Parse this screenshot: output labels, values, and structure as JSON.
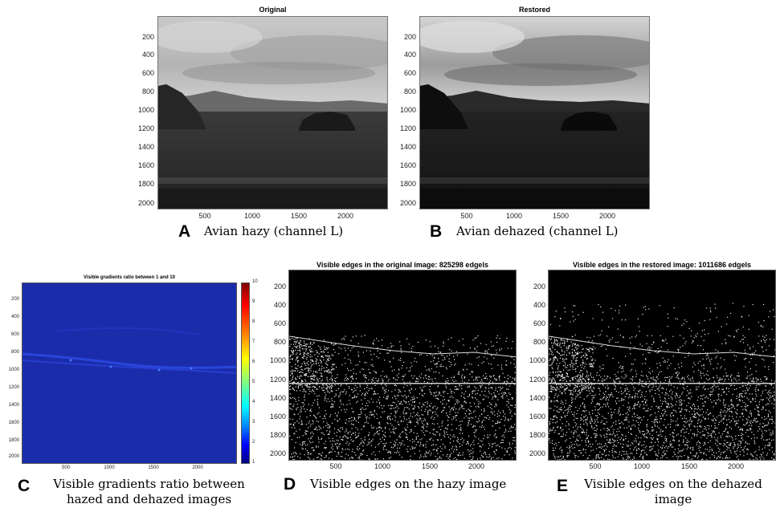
{
  "panels": {
    "A": {
      "title": "Original",
      "letter": "A",
      "caption": "Avian hazy (channel L)",
      "yticks": [
        "200",
        "400",
        "600",
        "800",
        "1000",
        "1200",
        "1400",
        "1600",
        "1800",
        "2000"
      ],
      "xticks": [
        "500",
        "1000",
        "1500",
        "2000"
      ]
    },
    "B": {
      "title": "Restored",
      "letter": "B",
      "caption": "Avian dehazed (channel L)",
      "yticks": [
        "200",
        "400",
        "600",
        "800",
        "1000",
        "1200",
        "1400",
        "1600",
        "1800",
        "2000"
      ],
      "xticks": [
        "500",
        "1000",
        "1500",
        "2000"
      ]
    },
    "C": {
      "title": "Visible gradients ratio between 1 and 10",
      "letter": "C",
      "caption_line1": "Visible gradients ratio between",
      "caption_line2": "hazed and dehazed images",
      "yticks": [
        "200",
        "400",
        "600",
        "800",
        "1000",
        "1200",
        "1400",
        "1600",
        "1800",
        "2000"
      ],
      "xticks": [
        "500",
        "1000",
        "1500",
        "2000"
      ],
      "colorbar_ticks": [
        "10",
        "9",
        "8",
        "7",
        "6",
        "5",
        "4",
        "3",
        "2",
        "1"
      ]
    },
    "D": {
      "title": "Visible edges in the original image: 825298 edgels",
      "letter": "D",
      "caption": "Visible edges on the hazy image",
      "yticks": [
        "200",
        "400",
        "600",
        "800",
        "1000",
        "1200",
        "1400",
        "1600",
        "1800",
        "2000"
      ],
      "xticks": [
        "500",
        "1000",
        "1500",
        "2000"
      ]
    },
    "E": {
      "title": "Visible edges in the restored image: 1011686 edgels",
      "letter": "E",
      "caption_line1": "Visible edges on the dehazed",
      "caption_line2": "image",
      "yticks": [
        "200",
        "400",
        "600",
        "800",
        "1000",
        "1200",
        "1400",
        "1600",
        "1800",
        "2000"
      ],
      "xticks": [
        "500",
        "1000",
        "1500",
        "2000"
      ]
    }
  }
}
